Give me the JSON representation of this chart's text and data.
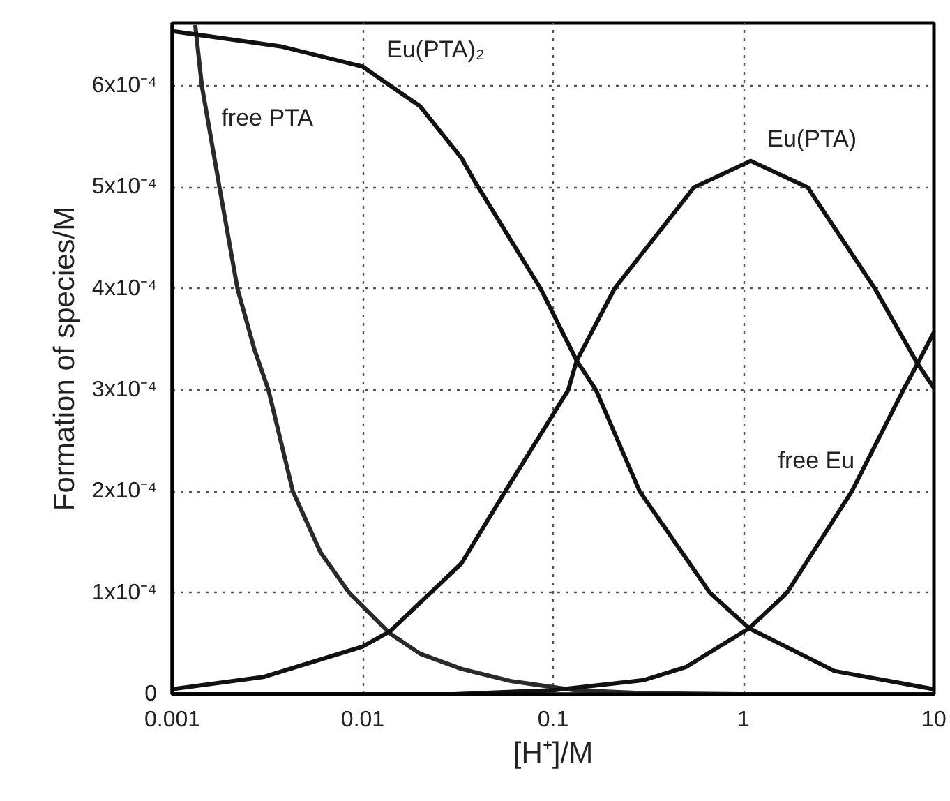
{
  "chart_data": {
    "type": "line",
    "xlabel": "[H⁺]/M",
    "ylabel": "Formation of species/M",
    "log": "x",
    "xlim": [
      0.001,
      10
    ],
    "xticks": [
      0.001,
      0.01,
      0.1,
      1,
      10
    ],
    "ylim": [
      0,
      0.000662
    ],
    "yticks": [
      {
        "value": 0,
        "label": "0"
      },
      {
        "value": 0.0001,
        "label": "1x10⁻⁴"
      },
      {
        "value": 0.0002,
        "label": "2x10⁻⁴"
      },
      {
        "value": 0.0003,
        "label": "3x10⁻⁴"
      },
      {
        "value": 0.0004,
        "label": "4x10⁻⁴"
      },
      {
        "value": 0.0005,
        "label": "5x10⁻⁴"
      },
      {
        "value": 0.0006,
        "label": "6x10⁻⁴"
      }
    ],
    "grid": true,
    "marker": "none",
    "line_style": "solid",
    "series": [
      {
        "name": "free PTA",
        "color": "#2a2a2a",
        "x": [
          0.00132,
          0.00143,
          0.00177,
          0.0022,
          0.0027,
          0.0032,
          0.0043,
          0.006,
          0.0085,
          0.0139,
          0.02,
          0.033,
          0.06,
          0.1,
          0.13,
          0.3,
          1,
          10
        ],
        "values": [
          0.00066,
          0.0006,
          0.0005,
          0.0004,
          0.00034,
          0.0003,
          0.0002,
          0.00014,
          0.0001,
          6e-05,
          4e-05,
          2.5e-05,
          1.3e-05,
          7e-06,
          4e-06,
          1e-06,
          0,
          0
        ]
      },
      {
        "name": "Eu(PTA)₂",
        "color": "#111111",
        "x": [
          0.001,
          0.0037,
          0.01,
          0.02,
          0.033,
          0.039,
          0.086,
          0.133,
          0.168,
          0.285,
          0.667,
          1.07,
          3,
          10
        ],
        "values": [
          0.000654,
          0.000639,
          0.000619,
          0.00058,
          0.000529,
          0.000505,
          0.0004,
          0.000329,
          0.0003,
          0.0002,
          0.0001,
          6.5e-05,
          2.3e-05,
          5e-06
        ]
      },
      {
        "name": "Eu(PTA)",
        "color": "#111111",
        "x": [
          0.001,
          0.003,
          0.01,
          0.0139,
          0.033,
          0.056,
          0.12,
          0.133,
          0.21,
          0.55,
          1.09,
          2.17,
          4.9,
          8.2,
          10
        ],
        "values": [
          5e-06,
          1.7e-05,
          4.7e-05,
          6.2e-05,
          0.000129,
          0.0002,
          0.0003,
          0.000329,
          0.0004,
          0.0005,
          0.000526,
          0.0005,
          0.0004,
          0.000326,
          0.000302
        ]
      },
      {
        "name": "free Eu",
        "color": "#111111",
        "x": [
          0.001,
          0.03,
          0.1,
          0.3,
          0.5,
          1.07,
          1.69,
          3.7,
          6.9,
          8.2,
          10
        ],
        "values": [
          0,
          0,
          4e-06,
          1.4e-05,
          2.7e-05,
          6.5e-05,
          0.0001,
          0.0002,
          0.0003,
          0.000326,
          0.000357
        ]
      }
    ]
  }
}
